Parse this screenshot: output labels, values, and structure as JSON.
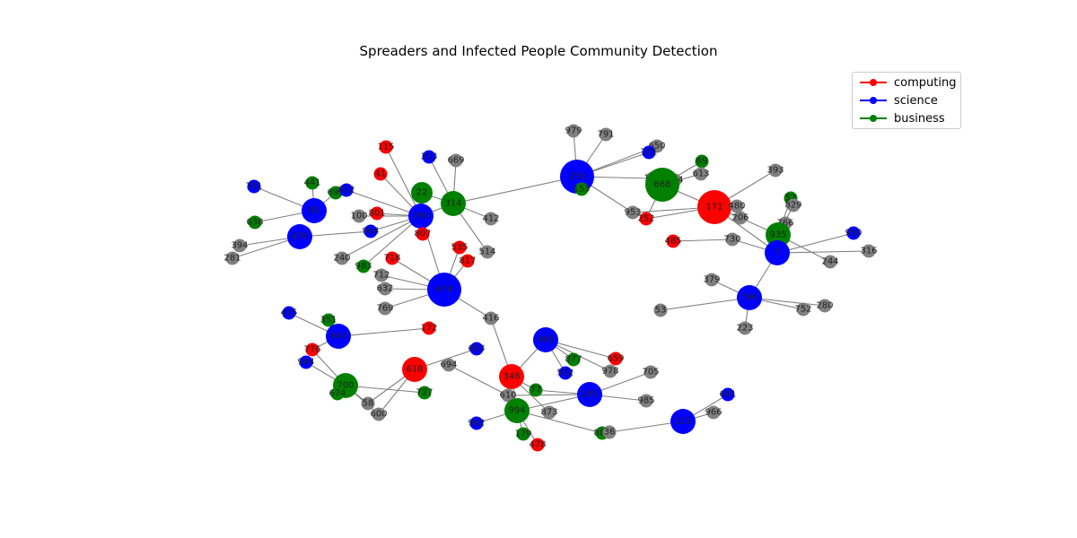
{
  "title": "Spreaders and Infected People Community Detection",
  "colors": {
    "computing": "#ff0000",
    "science": "#0000ff",
    "business": "#008000",
    "unassigned": "#808080",
    "edge": "#808080"
  },
  "legend": [
    {
      "label": "computing",
      "color": "#ff0000"
    },
    {
      "label": "science",
      "color": "#0000ff"
    },
    {
      "label": "business",
      "color": "#008000"
    }
  ],
  "nodes": [
    {
      "id": "115",
      "community": "computing",
      "size": "small"
    },
    {
      "id": "41",
      "community": "computing",
      "size": "small"
    },
    {
      "id": "313",
      "community": "science",
      "size": "small"
    },
    {
      "id": "669",
      "community": "unassigned",
      "size": "small"
    },
    {
      "id": "22",
      "community": "business",
      "size": "medium"
    },
    {
      "id": "314",
      "community": "business",
      "size": "large"
    },
    {
      "id": "290",
      "community": "science",
      "size": "large"
    },
    {
      "id": "801",
      "community": "computing",
      "size": "small"
    },
    {
      "id": "100",
      "community": "unassigned",
      "size": "small"
    },
    {
      "id": "904",
      "community": "science",
      "size": "small"
    },
    {
      "id": "807",
      "community": "computing",
      "size": "small"
    },
    {
      "id": "412",
      "community": "unassigned",
      "size": "small"
    },
    {
      "id": "514",
      "community": "unassigned",
      "size": "small"
    },
    {
      "id": "441",
      "community": "business",
      "size": "small"
    },
    {
      "id": "781",
      "community": "science",
      "size": "small"
    },
    {
      "id": "695",
      "community": "business",
      "size": "small"
    },
    {
      "id": "812",
      "community": "science",
      "size": "small"
    },
    {
      "id": "81",
      "community": "science",
      "size": "large"
    },
    {
      "id": "638",
      "community": "business",
      "size": "small"
    },
    {
      "id": "470",
      "community": "science",
      "size": "large"
    },
    {
      "id": "394",
      "community": "unassigned",
      "size": "small"
    },
    {
      "id": "281",
      "community": "unassigned",
      "size": "small"
    },
    {
      "id": "240",
      "community": "unassigned",
      "size": "small"
    },
    {
      "id": "983",
      "community": "business",
      "size": "small"
    },
    {
      "id": "718",
      "community": "computing",
      "size": "small"
    },
    {
      "id": "535",
      "community": "computing",
      "size": "small"
    },
    {
      "id": "817",
      "community": "computing",
      "size": "small"
    },
    {
      "id": "712",
      "community": "unassigned",
      "size": "small"
    },
    {
      "id": "632",
      "community": "unassigned",
      "size": "small"
    },
    {
      "id": "678",
      "community": "science",
      "size": "xlarge"
    },
    {
      "id": "769",
      "community": "unassigned",
      "size": "small"
    },
    {
      "id": "416",
      "community": "unassigned",
      "size": "small"
    },
    {
      "id": "415",
      "community": "science",
      "size": "small"
    },
    {
      "id": "351",
      "community": "business",
      "size": "small"
    },
    {
      "id": "943",
      "community": "science",
      "size": "large"
    },
    {
      "id": "172",
      "community": "computing",
      "size": "small"
    },
    {
      "id": "776",
      "community": "computing",
      "size": "small"
    },
    {
      "id": "964",
      "community": "science",
      "size": "small"
    },
    {
      "id": "618",
      "community": "computing",
      "size": "large"
    },
    {
      "id": "700",
      "community": "business",
      "size": "large"
    },
    {
      "id": "674",
      "community": "business",
      "size": "small"
    },
    {
      "id": "58",
      "community": "unassigned",
      "size": "small"
    },
    {
      "id": "600",
      "community": "unassigned",
      "size": "small"
    },
    {
      "id": "727",
      "community": "business",
      "size": "small"
    },
    {
      "id": "694",
      "community": "unassigned",
      "size": "small"
    },
    {
      "id": "603",
      "community": "science",
      "size": "small"
    },
    {
      "id": "348",
      "community": "computing",
      "size": "large"
    },
    {
      "id": "610",
      "community": "unassigned",
      "size": "small"
    },
    {
      "id": "994",
      "community": "business",
      "size": "large"
    },
    {
      "id": "962",
      "community": "science",
      "size": "small"
    },
    {
      "id": "179",
      "community": "business",
      "size": "small"
    },
    {
      "id": "478",
      "community": "computing",
      "size": "small"
    },
    {
      "id": "77",
      "community": "business",
      "size": "small"
    },
    {
      "id": "873",
      "community": "unassigned",
      "size": "small"
    },
    {
      "id": "465",
      "community": "science",
      "size": "large"
    },
    {
      "id": "877",
      "community": "business",
      "size": "small"
    },
    {
      "id": "552",
      "community": "science",
      "size": "small"
    },
    {
      "id": "659",
      "community": "computing",
      "size": "small"
    },
    {
      "id": "978",
      "community": "unassigned",
      "size": "small"
    },
    {
      "id": "705",
      "community": "unassigned",
      "size": "small"
    },
    {
      "id": "185",
      "community": "science",
      "size": "large"
    },
    {
      "id": "985",
      "community": "unassigned",
      "size": "small"
    },
    {
      "id": "887",
      "community": "business",
      "size": "small"
    },
    {
      "id": "36",
      "community": "unassigned",
      "size": "small"
    },
    {
      "id": "121",
      "community": "science",
      "size": "large"
    },
    {
      "id": "966",
      "community": "unassigned",
      "size": "small"
    },
    {
      "id": "691",
      "community": "science",
      "size": "small"
    },
    {
      "id": "979",
      "community": "unassigned",
      "size": "small"
    },
    {
      "id": "791",
      "community": "unassigned",
      "size": "small"
    },
    {
      "id": "253",
      "community": "science",
      "size": "xlarge"
    },
    {
      "id": "153",
      "community": "business",
      "size": "small"
    },
    {
      "id": "953",
      "community": "unassigned",
      "size": "small"
    },
    {
      "id": "252",
      "community": "computing",
      "size": "small"
    },
    {
      "id": "650",
      "community": "unassigned",
      "size": "small"
    },
    {
      "id": "721",
      "community": "science",
      "size": "small"
    },
    {
      "id": "69",
      "community": "business",
      "size": "small"
    },
    {
      "id": "613",
      "community": "unassigned",
      "size": "small"
    },
    {
      "id": "164",
      "community": "unassigned",
      "size": "small"
    },
    {
      "id": "424",
      "community": "unassigned",
      "size": "small"
    },
    {
      "id": "868",
      "community": "business",
      "size": "xlarge"
    },
    {
      "id": "171",
      "community": "computing",
      "size": "xlarge"
    },
    {
      "id": "480",
      "community": "unassigned",
      "size": "small"
    },
    {
      "id": "206",
      "community": "unassigned",
      "size": "small"
    },
    {
      "id": "393",
      "community": "unassigned",
      "size": "small"
    },
    {
      "id": "52",
      "community": "business",
      "size": "small"
    },
    {
      "id": "829",
      "community": "unassigned",
      "size": "small"
    },
    {
      "id": "766",
      "community": "unassigned",
      "size": "small"
    },
    {
      "id": "935",
      "community": "business",
      "size": "large"
    },
    {
      "id": "485",
      "community": "computing",
      "size": "small"
    },
    {
      "id": "730",
      "community": "unassigned",
      "size": "small"
    },
    {
      "id": "950",
      "community": "science",
      "size": "small"
    },
    {
      "id": "316",
      "community": "unassigned",
      "size": "small"
    },
    {
      "id": "7",
      "community": "science",
      "size": "large"
    },
    {
      "id": "244",
      "community": "unassigned",
      "size": "small"
    },
    {
      "id": "379",
      "community": "unassigned",
      "size": "small"
    },
    {
      "id": "796",
      "community": "science",
      "size": "large"
    },
    {
      "id": "280",
      "community": "unassigned",
      "size": "small"
    },
    {
      "id": "752",
      "community": "unassigned",
      "size": "small"
    },
    {
      "id": "53",
      "community": "unassigned",
      "size": "small"
    },
    {
      "id": "223",
      "community": "unassigned",
      "size": "small"
    }
  ],
  "edges": [
    [
      "290",
      "801"
    ],
    [
      "290",
      "100"
    ],
    [
      "290",
      "904"
    ],
    [
      "290",
      "807"
    ],
    [
      "290",
      "22"
    ],
    [
      "290",
      "41"
    ],
    [
      "290",
      "115"
    ],
    [
      "290",
      "240"
    ],
    [
      "290",
      "983"
    ],
    [
      "290",
      "812"
    ],
    [
      "314",
      "313"
    ],
    [
      "314",
      "669"
    ],
    [
      "314",
      "22"
    ],
    [
      "314",
      "412"
    ],
    [
      "314",
      "514"
    ],
    [
      "314",
      "290"
    ],
    [
      "314",
      "253"
    ],
    [
      "81",
      "441"
    ],
    [
      "81",
      "781"
    ],
    [
      "81",
      "695"
    ],
    [
      "81",
      "638"
    ],
    [
      "470",
      "394"
    ],
    [
      "470",
      "281"
    ],
    [
      "470",
      "904"
    ],
    [
      "678",
      "535"
    ],
    [
      "678",
      "817"
    ],
    [
      "678",
      "718"
    ],
    [
      "678",
      "712"
    ],
    [
      "678",
      "632"
    ],
    [
      "678",
      "769"
    ],
    [
      "678",
      "416"
    ],
    [
      "678",
      "290"
    ],
    [
      "943",
      "415"
    ],
    [
      "943",
      "351"
    ],
    [
      "943",
      "172"
    ],
    [
      "943",
      "776"
    ],
    [
      "700",
      "776"
    ],
    [
      "700",
      "964"
    ],
    [
      "700",
      "674"
    ],
    [
      "700",
      "58"
    ],
    [
      "700",
      "600"
    ],
    [
      "700",
      "727"
    ],
    [
      "618",
      "603"
    ],
    [
      "618",
      "58"
    ],
    [
      "618",
      "600"
    ],
    [
      "348",
      "416"
    ],
    [
      "348",
      "465"
    ],
    [
      "348",
      "610"
    ],
    [
      "348",
      "77"
    ],
    [
      "348",
      "873"
    ],
    [
      "348",
      "994"
    ],
    [
      "694",
      "610"
    ],
    [
      "994",
      "962"
    ],
    [
      "994",
      "179"
    ],
    [
      "994",
      "478"
    ],
    [
      "994",
      "610"
    ],
    [
      "994",
      "185"
    ],
    [
      "994",
      "887"
    ],
    [
      "465",
      "877"
    ],
    [
      "465",
      "552"
    ],
    [
      "465",
      "659"
    ],
    [
      "465",
      "978"
    ],
    [
      "185",
      "77"
    ],
    [
      "185",
      "705"
    ],
    [
      "185",
      "985"
    ],
    [
      "185",
      "610"
    ],
    [
      "121",
      "36"
    ],
    [
      "121",
      "966"
    ],
    [
      "121",
      "691"
    ],
    [
      "253",
      "979"
    ],
    [
      "253",
      "791"
    ],
    [
      "253",
      "153"
    ],
    [
      "253",
      "721"
    ],
    [
      "253",
      "650"
    ],
    [
      "253",
      "164"
    ],
    [
      "253",
      "953"
    ],
    [
      "868",
      "69"
    ],
    [
      "868",
      "613"
    ],
    [
      "868",
      "424"
    ],
    [
      "868",
      "164"
    ],
    [
      "868",
      "171"
    ],
    [
      "868",
      "252"
    ],
    [
      "171",
      "480"
    ],
    [
      "171",
      "206"
    ],
    [
      "171",
      "393"
    ],
    [
      "171",
      "953"
    ],
    [
      "171",
      "7"
    ],
    [
      "171",
      "252"
    ],
    [
      "935",
      "52"
    ],
    [
      "935",
      "829"
    ],
    [
      "935",
      "766"
    ],
    [
      "935",
      "244"
    ],
    [
      "935",
      "206"
    ],
    [
      "7",
      "950"
    ],
    [
      "7",
      "316"
    ],
    [
      "7",
      "730"
    ],
    [
      "7",
      "796"
    ],
    [
      "730",
      "485"
    ],
    [
      "796",
      "379"
    ],
    [
      "796",
      "280"
    ],
    [
      "796",
      "752"
    ],
    [
      "796",
      "53"
    ],
    [
      "796",
      "223"
    ]
  ]
}
